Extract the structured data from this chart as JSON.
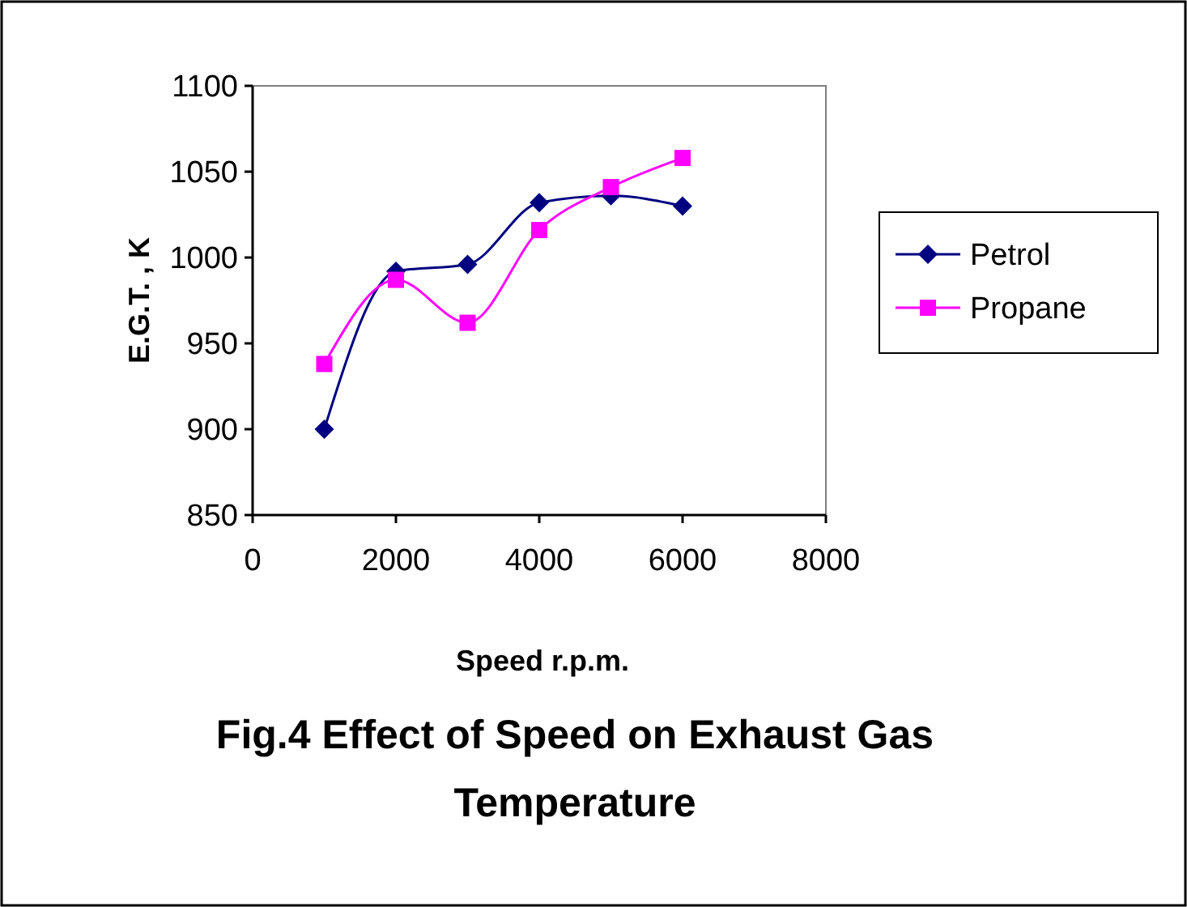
{
  "chart_data": {
    "type": "line",
    "title": "Fig.4 Effect of Speed on Exhaust Gas Temperature",
    "xlabel": "Speed r.p.m.",
    "ylabel": "E.G.T. , K",
    "x": [
      1000,
      2000,
      3000,
      4000,
      5000,
      6000
    ],
    "series": [
      {
        "name": "Petrol",
        "color": "#000080",
        "marker": "diamond",
        "values": [
          900,
          992,
          996,
          1032,
          1036,
          1030
        ]
      },
      {
        "name": "Propane",
        "color": "#ff00ff",
        "marker": "square",
        "values": [
          938,
          987,
          962,
          1016,
          1041,
          1058
        ]
      }
    ],
    "xlim": [
      0,
      8000
    ],
    "xticks": [
      0,
      2000,
      4000,
      6000,
      8000
    ],
    "ylim": [
      850,
      1100
    ],
    "yticks": [
      850,
      900,
      950,
      1000,
      1050,
      1100
    ],
    "legend": "right",
    "grid": false
  }
}
